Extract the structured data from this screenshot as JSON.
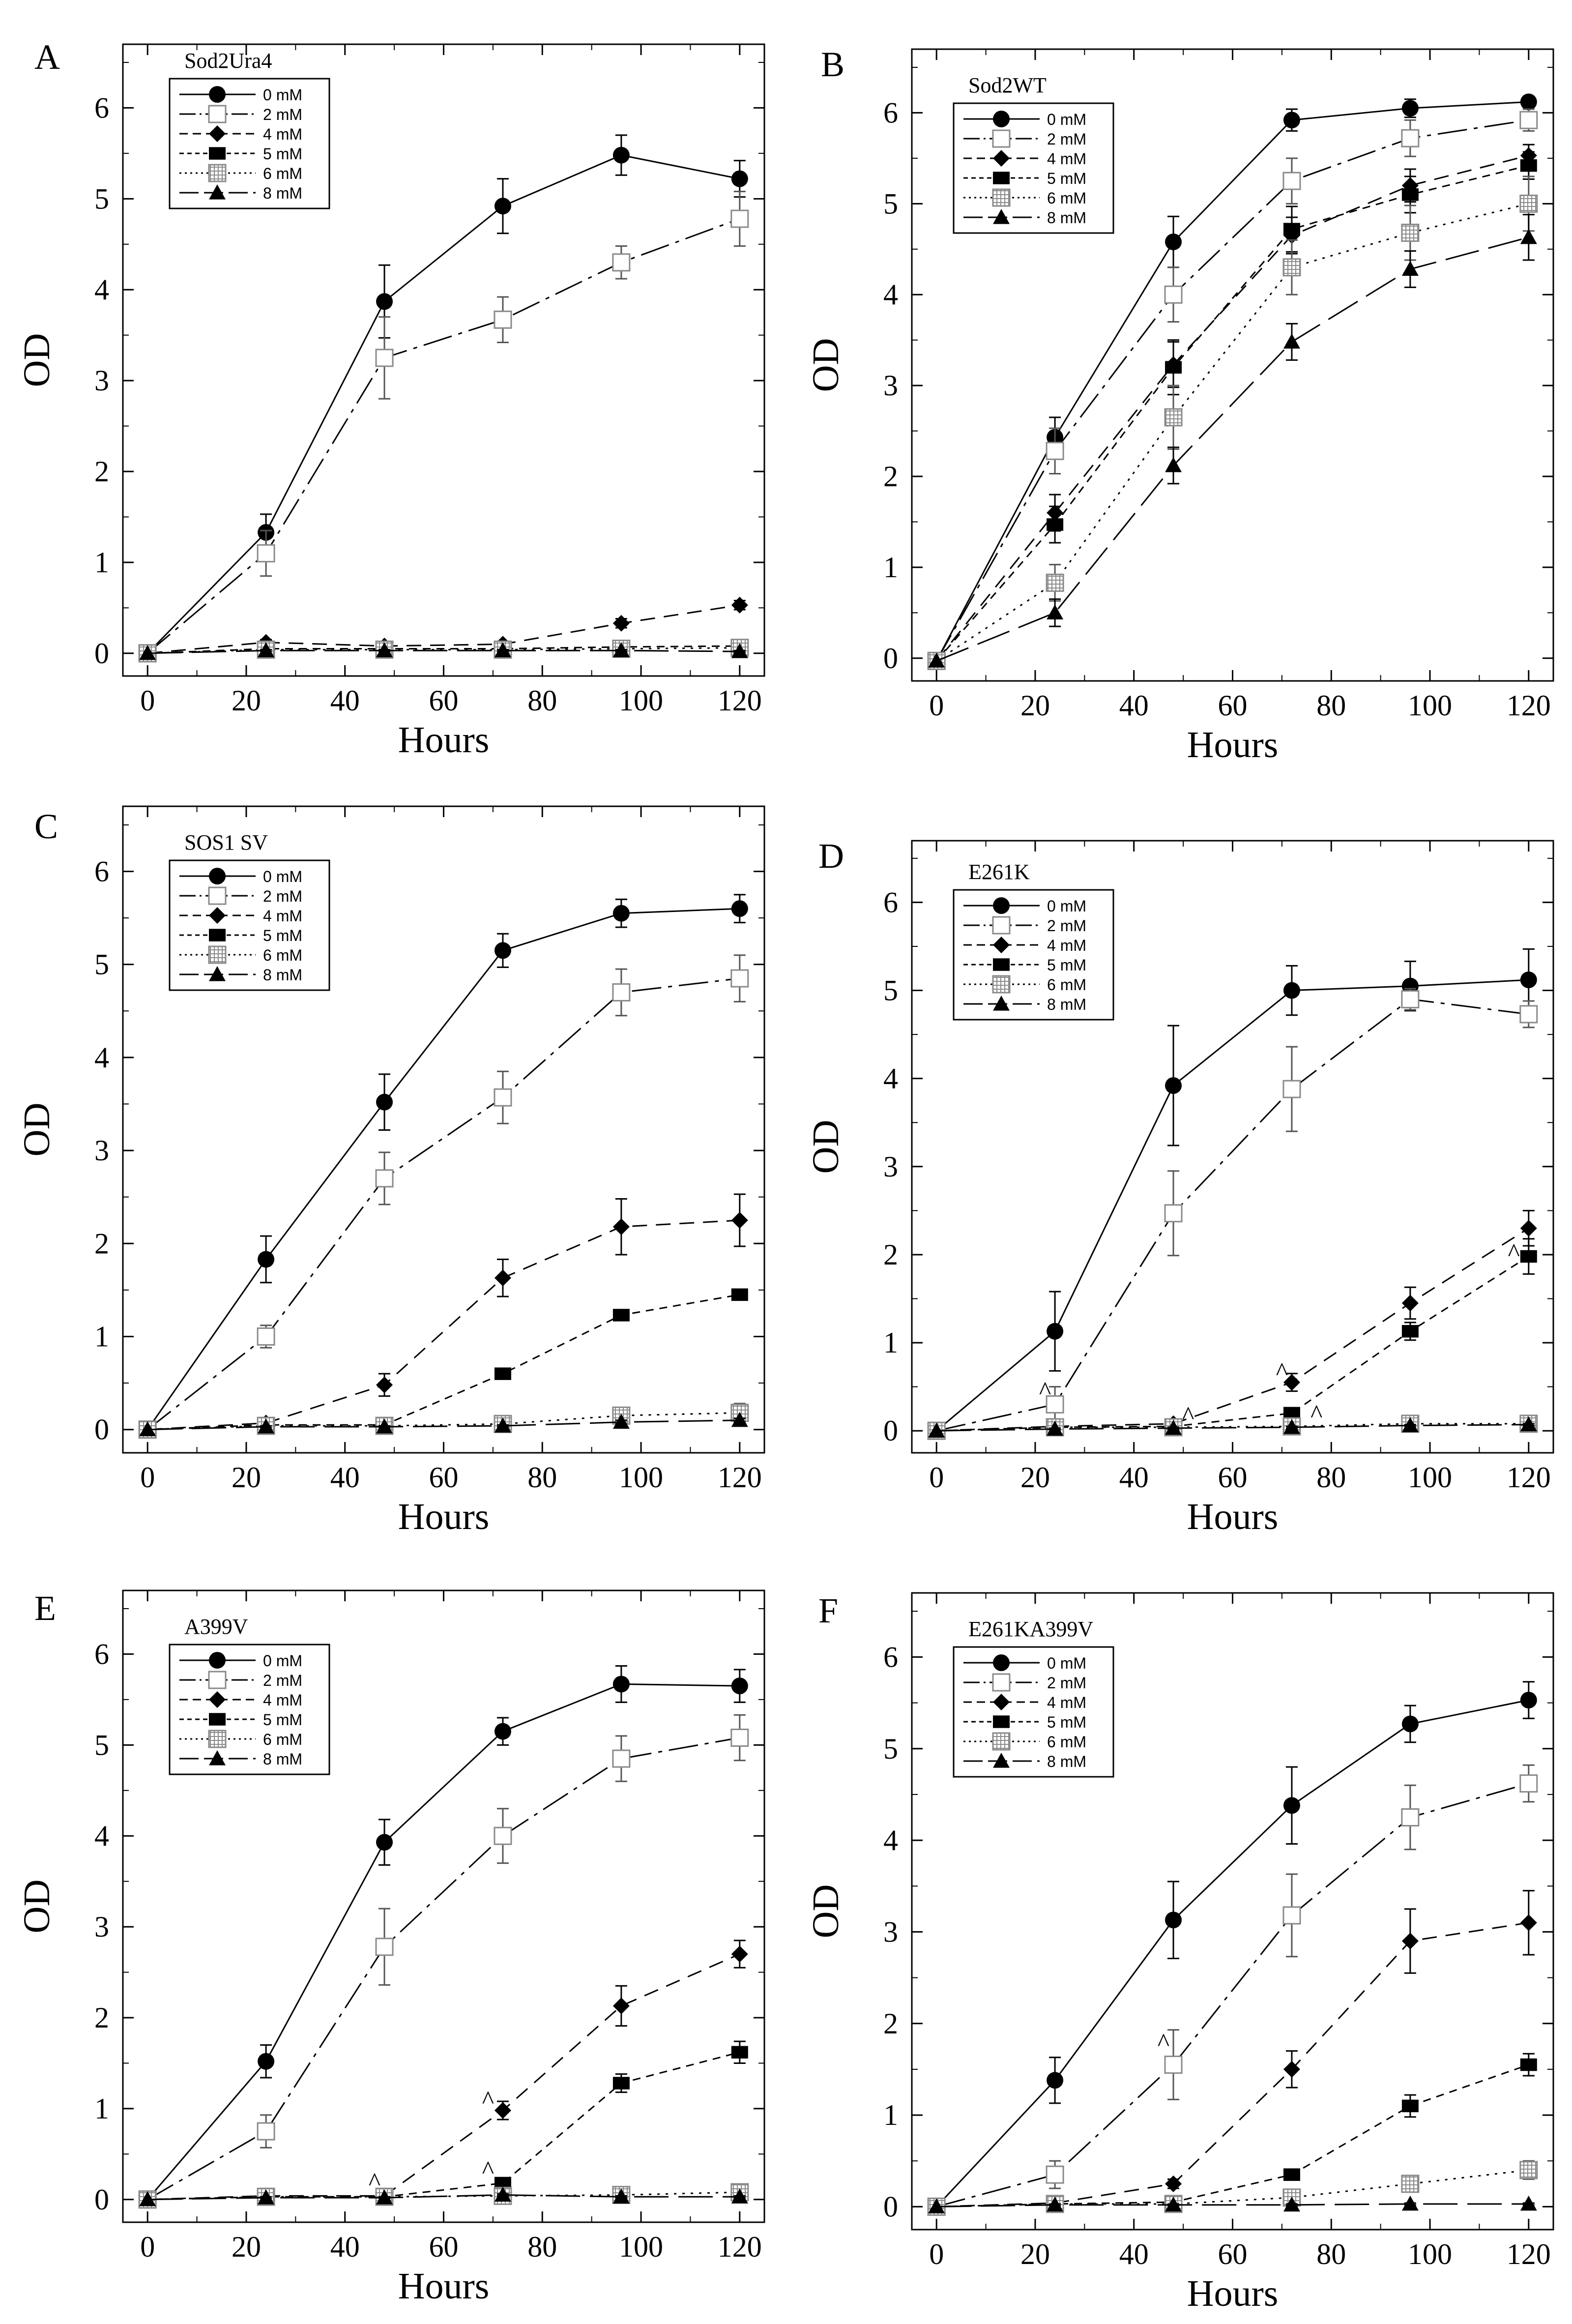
{
  "figure": {
    "title": ""
  },
  "chart_data": [
    {
      "panel": "A",
      "type": "line",
      "title": "Sod2Ura4",
      "xlabel": "Hours",
      "ylabel": "OD",
      "xlim": [
        -5,
        125
      ],
      "ylim": [
        -0.25,
        6.7
      ],
      "xticks": [
        0,
        20,
        40,
        60,
        80,
        100,
        120
      ],
      "yticks": [
        0,
        1,
        2,
        3,
        4,
        5,
        6
      ],
      "legend_position": "top-left",
      "x": [
        0,
        24,
        48,
        72,
        96,
        120
      ],
      "series": [
        {
          "name": "0 mM",
          "marker": "circle",
          "values": [
            0,
            1.33,
            3.87,
            4.92,
            5.48,
            5.22
          ],
          "errors": [
            0,
            0.2,
            0.4,
            0.3,
            0.22,
            0.2
          ]
        },
        {
          "name": "2 mM",
          "marker": "open-square",
          "values": [
            0,
            1.1,
            3.25,
            3.67,
            4.3,
            4.78
          ],
          "errors": [
            0,
            0.25,
            0.45,
            0.25,
            0.18,
            0.3
          ]
        },
        {
          "name": "4 mM",
          "marker": "diamond",
          "values": [
            0,
            0.12,
            0.08,
            0.1,
            0.33,
            0.53
          ],
          "errors": [
            0,
            0.03,
            0.03,
            0.03,
            0.05,
            0.05
          ]
        },
        {
          "name": "5 mM",
          "marker": "filled-square",
          "values": [
            0,
            0.05,
            0.05,
            0.05,
            0.07,
            0.08
          ],
          "errors": [
            0,
            0.02,
            0.02,
            0.02,
            0.02,
            0.02
          ]
        },
        {
          "name": "6 mM",
          "marker": "hatched-square",
          "values": [
            0,
            0.04,
            0.04,
            0.04,
            0.05,
            0.06
          ],
          "errors": [
            0,
            0.02,
            0.02,
            0.02,
            0.02,
            0.02
          ]
        },
        {
          "name": "8 mM",
          "marker": "triangle",
          "values": [
            0,
            0.03,
            0.03,
            0.03,
            0.03,
            0.02
          ],
          "errors": [
            0,
            0.01,
            0.01,
            0.01,
            0.01,
            0.01
          ]
        }
      ]
    },
    {
      "panel": "B",
      "type": "line",
      "title": "Sod2WT",
      "xlabel": "Hours",
      "ylabel": "OD",
      "xlim": [
        -5,
        125
      ],
      "ylim": [
        -0.25,
        6.7
      ],
      "xticks": [
        0,
        20,
        40,
        60,
        80,
        100,
        120
      ],
      "yticks": [
        0,
        1,
        2,
        3,
        4,
        5,
        6
      ],
      "legend_position": "top-left",
      "x": [
        0,
        24,
        48,
        72,
        96,
        120
      ],
      "series": [
        {
          "name": "0 mM",
          "marker": "circle",
          "values": [
            -0.03,
            2.43,
            4.58,
            5.92,
            6.05,
            6.12
          ],
          "errors": [
            0,
            0.22,
            0.28,
            0.12,
            0.1,
            0.06
          ]
        },
        {
          "name": "2 mM",
          "marker": "open-square",
          "values": [
            -0.03,
            2.28,
            4.0,
            5.25,
            5.72,
            5.92
          ],
          "errors": [
            0,
            0.25,
            0.3,
            0.25,
            0.2,
            0.12
          ]
        },
        {
          "name": "4 mM",
          "marker": "diamond",
          "values": [
            -0.03,
            1.6,
            3.23,
            4.65,
            5.2,
            5.53
          ],
          "errors": [
            0,
            0.2,
            0.25,
            0.2,
            0.18,
            0.12
          ]
        },
        {
          "name": "5 mM",
          "marker": "filled-square",
          "values": [
            -0.03,
            1.47,
            3.2,
            4.72,
            5.1,
            5.42
          ],
          "errors": [
            0,
            0.2,
            0.3,
            0.25,
            0.2,
            0.15
          ]
        },
        {
          "name": "6 mM",
          "marker": "hatched-square",
          "values": [
            -0.03,
            0.83,
            2.65,
            4.3,
            4.68,
            5.0
          ],
          "errors": [
            0,
            0.2,
            0.35,
            0.3,
            0.3,
            0.3
          ]
        },
        {
          "name": "8 mM",
          "marker": "triangle",
          "values": [
            -0.03,
            0.5,
            2.12,
            3.48,
            4.28,
            4.63
          ],
          "errors": [
            0,
            0.15,
            0.2,
            0.2,
            0.2,
            0.25
          ]
        }
      ]
    },
    {
      "panel": "C",
      "type": "line",
      "title": "SOS1 SV",
      "xlabel": "Hours",
      "ylabel": "OD",
      "xlim": [
        -5,
        125
      ],
      "ylim": [
        -0.25,
        6.7
      ],
      "xticks": [
        0,
        20,
        40,
        60,
        80,
        100,
        120
      ],
      "yticks": [
        0,
        1,
        2,
        3,
        4,
        5,
        6
      ],
      "legend_position": "top-left",
      "x": [
        0,
        24,
        48,
        72,
        96,
        120
      ],
      "series": [
        {
          "name": "0 mM",
          "marker": "circle",
          "values": [
            0,
            1.83,
            3.52,
            5.15,
            5.55,
            5.6
          ],
          "errors": [
            0,
            0.25,
            0.3,
            0.18,
            0.15,
            0.15
          ]
        },
        {
          "name": "2 mM",
          "marker": "open-square",
          "values": [
            0,
            1.0,
            2.7,
            3.57,
            4.7,
            4.85
          ],
          "errors": [
            0,
            0.12,
            0.28,
            0.28,
            0.25,
            0.25
          ]
        },
        {
          "name": "4 mM",
          "marker": "diamond",
          "values": [
            0,
            0.07,
            0.48,
            1.63,
            2.18,
            2.25
          ],
          "errors": [
            0,
            0.03,
            0.12,
            0.2,
            0.3,
            0.28
          ]
        },
        {
          "name": "5 mM",
          "marker": "filled-square",
          "values": [
            0,
            0.05,
            0.05,
            0.6,
            1.23,
            1.45
          ],
          "errors": [
            0,
            0.02,
            0.02,
            0.05,
            0.05,
            0.05
          ]
        },
        {
          "name": "6 mM",
          "marker": "hatched-square",
          "values": [
            0,
            0.04,
            0.04,
            0.06,
            0.15,
            0.18
          ],
          "errors": [
            0,
            0.02,
            0.02,
            0.02,
            0.05,
            0.1
          ]
        },
        {
          "name": "8 mM",
          "marker": "triangle",
          "values": [
            0,
            0.03,
            0.03,
            0.04,
            0.08,
            0.1
          ],
          "errors": [
            0,
            0.01,
            0.01,
            0.01,
            0.02,
            0.02
          ]
        }
      ]
    },
    {
      "panel": "D",
      "type": "line",
      "title": "E261K",
      "xlabel": "Hours",
      "ylabel": "OD",
      "xlim": [
        -5,
        125
      ],
      "ylim": [
        -0.25,
        6.7
      ],
      "xticks": [
        0,
        20,
        40,
        60,
        80,
        100,
        120
      ],
      "yticks": [
        0,
        1,
        2,
        3,
        4,
        5,
        6
      ],
      "legend_position": "top-left",
      "x": [
        0,
        24,
        48,
        72,
        96,
        120
      ],
      "series": [
        {
          "name": "0 mM",
          "marker": "circle",
          "values": [
            0,
            1.13,
            3.92,
            5.0,
            5.05,
            5.12
          ],
          "errors": [
            0,
            0.45,
            0.68,
            0.28,
            0.28,
            0.35
          ]
        },
        {
          "name": "2 mM",
          "marker": "open-square",
          "values": [
            0,
            0.3,
            2.47,
            3.88,
            4.9,
            4.73
          ],
          "errors": [
            0,
            0.2,
            0.48,
            0.48,
            0.12,
            0.15
          ]
        },
        {
          "name": "4 mM",
          "marker": "diamond",
          "values": [
            0,
            0.05,
            0.08,
            0.55,
            1.45,
            2.3
          ],
          "errors": [
            0,
            0.02,
            0.03,
            0.1,
            0.18,
            0.2
          ]
        },
        {
          "name": "5 mM",
          "marker": "filled-square",
          "values": [
            0,
            0.04,
            0.05,
            0.2,
            1.13,
            1.98
          ],
          "errors": [
            0,
            0.02,
            0.02,
            0.05,
            0.1,
            0.2
          ]
        },
        {
          "name": "6 mM",
          "marker": "hatched-square",
          "values": [
            0,
            0.04,
            0.04,
            0.05,
            0.08,
            0.08
          ],
          "errors": [
            0,
            0.02,
            0.02,
            0.02,
            0.02,
            0.02
          ]
        },
        {
          "name": "8 mM",
          "marker": "triangle",
          "values": [
            0,
            0.02,
            0.03,
            0.04,
            0.06,
            0.07
          ],
          "errors": [
            0,
            0.01,
            0.01,
            0.01,
            0.01,
            0.01
          ]
        }
      ],
      "annotations": [
        {
          "text": "^",
          "x": 22,
          "y": 0.48
        },
        {
          "text": "^",
          "x": 51,
          "y": 0.2
        },
        {
          "text": "^",
          "x": 70,
          "y": 0.7
        },
        {
          "text": "^",
          "x": 77,
          "y": 0.22
        },
        {
          "text": "^",
          "x": 117,
          "y": 2.05
        }
      ]
    },
    {
      "panel": "E",
      "type": "line",
      "title": "A399V",
      "xlabel": "Hours",
      "ylabel": "OD",
      "xlim": [
        -5,
        125
      ],
      "ylim": [
        -0.25,
        6.7
      ],
      "xticks": [
        0,
        20,
        40,
        60,
        80,
        100,
        120
      ],
      "yticks": [
        0,
        1,
        2,
        3,
        4,
        5,
        6
      ],
      "legend_position": "top-left",
      "x": [
        0,
        24,
        48,
        72,
        96,
        120
      ],
      "series": [
        {
          "name": "0 mM",
          "marker": "circle",
          "values": [
            0,
            1.52,
            3.93,
            5.15,
            5.67,
            5.65
          ],
          "errors": [
            0,
            0.18,
            0.25,
            0.15,
            0.2,
            0.18
          ]
        },
        {
          "name": "2 mM",
          "marker": "open-square",
          "values": [
            0,
            0.75,
            2.78,
            4.0,
            4.85,
            5.08
          ],
          "errors": [
            0,
            0.18,
            0.42,
            0.3,
            0.25,
            0.25
          ]
        },
        {
          "name": "4 mM",
          "marker": "diamond",
          "values": [
            0,
            0.04,
            0.04,
            0.98,
            2.13,
            2.7
          ],
          "errors": [
            0,
            0.02,
            0.02,
            0.1,
            0.22,
            0.15
          ]
        },
        {
          "name": "5 mM",
          "marker": "filled-square",
          "values": [
            0,
            0.03,
            0.03,
            0.18,
            1.28,
            1.62
          ],
          "errors": [
            0,
            0.02,
            0.02,
            0.05,
            0.1,
            0.12
          ]
        },
        {
          "name": "6 mM",
          "marker": "hatched-square",
          "values": [
            0,
            0.03,
            0.03,
            0.04,
            0.05,
            0.08
          ],
          "errors": [
            0,
            0.02,
            0.02,
            0.02,
            0.02,
            0.02
          ]
        },
        {
          "name": "8 mM",
          "marker": "triangle",
          "values": [
            0,
            0.02,
            0.02,
            0.05,
            0.03,
            0.03
          ],
          "errors": [
            0,
            0.01,
            0.01,
            0.01,
            0.01,
            0.01
          ]
        }
      ],
      "annotations": [
        {
          "text": "^",
          "x": 46,
          "y": 0.22
        },
        {
          "text": "^",
          "x": 69,
          "y": 1.12
        },
        {
          "text": "^",
          "x": 69,
          "y": 0.35
        }
      ]
    },
    {
      "panel": "F",
      "type": "line",
      "title": "E261KA399V",
      "xlabel": "Hours",
      "ylabel": "OD",
      "xlim": [
        -5,
        125
      ],
      "ylim": [
        -0.25,
        6.7
      ],
      "xticks": [
        0,
        20,
        40,
        60,
        80,
        100,
        120
      ],
      "yticks": [
        0,
        1,
        2,
        3,
        4,
        5,
        6
      ],
      "legend_position": "top-left",
      "x": [
        0,
        24,
        48,
        72,
        96,
        120
      ],
      "series": [
        {
          "name": "0 mM",
          "marker": "circle",
          "values": [
            0,
            1.38,
            3.13,
            4.38,
            5.27,
            5.53
          ],
          "errors": [
            0,
            0.25,
            0.42,
            0.42,
            0.2,
            0.2
          ]
        },
        {
          "name": "2 mM",
          "marker": "open-square",
          "values": [
            0,
            0.35,
            1.55,
            3.18,
            4.25,
            4.62
          ],
          "errors": [
            0,
            0.15,
            0.38,
            0.45,
            0.35,
            0.2
          ]
        },
        {
          "name": "4 mM",
          "marker": "diamond",
          "values": [
            0,
            0.04,
            0.25,
            1.5,
            2.9,
            3.1
          ],
          "errors": [
            0,
            0.02,
            0.05,
            0.2,
            0.35,
            0.35
          ]
        },
        {
          "name": "5 mM",
          "marker": "filled-square",
          "values": [
            0,
            0.03,
            0.05,
            0.35,
            1.1,
            1.55
          ],
          "errors": [
            0,
            0.02,
            0.02,
            0.05,
            0.12,
            0.12
          ]
        },
        {
          "name": "6 mM",
          "marker": "hatched-square",
          "values": [
            0,
            0.03,
            0.03,
            0.1,
            0.25,
            0.4
          ],
          "errors": [
            0,
            0.02,
            0.02,
            0.05,
            0.05,
            0.1
          ]
        },
        {
          "name": "8 mM",
          "marker": "triangle",
          "values": [
            0,
            0.02,
            0.02,
            0.02,
            0.03,
            0.03
          ],
          "errors": [
            0,
            0.01,
            0.01,
            0.01,
            0.01,
            0.01
          ]
        }
      ],
      "annotations": [
        {
          "text": "^",
          "x": 46,
          "y": 1.82
        }
      ]
    }
  ]
}
